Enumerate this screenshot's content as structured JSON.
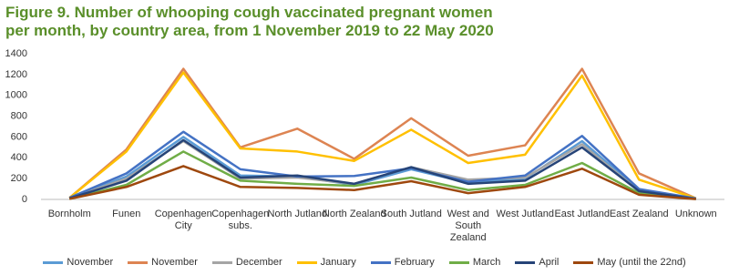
{
  "chart_data": {
    "type": "line",
    "title": "Figure 9. Number of whooping cough vaccinated pregnant women per month, by country area, from 1 November 2019 to 22 May 2020",
    "categories": [
      "Bornholm",
      "Funen",
      "Copenhagen City",
      "Copenhagen subs.",
      "North Jutland",
      "North Zealand",
      "South Jutland",
      "West and South Zealand",
      "West Jutland",
      "East Jutland",
      "East Zealand",
      "Unknown"
    ],
    "series": [
      {
        "name": "November",
        "color": "#5b9bd5",
        "values": [
          10,
          220,
          600,
          230,
          220,
          140,
          290,
          160,
          200,
          560,
          90,
          5
        ]
      },
      {
        "name": "November",
        "color": "#dd8452",
        "values": [
          15,
          480,
          1255,
          500,
          680,
          390,
          780,
          420,
          520,
          1255,
          250,
          10
        ]
      },
      {
        "name": "December",
        "color": "#a5a5a5",
        "values": [
          10,
          200,
          560,
          200,
          210,
          150,
          310,
          190,
          210,
          530,
          80,
          5
        ]
      },
      {
        "name": "January",
        "color": "#ffc000",
        "values": [
          15,
          460,
          1220,
          490,
          460,
          370,
          670,
          350,
          430,
          1190,
          190,
          10
        ]
      },
      {
        "name": "February",
        "color": "#4472c4",
        "values": [
          15,
          250,
          650,
          290,
          220,
          225,
          300,
          170,
          230,
          610,
          100,
          10
        ]
      },
      {
        "name": "March",
        "color": "#70ad47",
        "values": [
          5,
          140,
          460,
          180,
          150,
          130,
          210,
          90,
          140,
          350,
          60,
          5
        ]
      },
      {
        "name": "April",
        "color": "#264478",
        "values": [
          10,
          180,
          570,
          210,
          230,
          150,
          310,
          150,
          180,
          500,
          80,
          5
        ]
      },
      {
        "name": "May (until the 22nd)",
        "color": "#9e480e",
        "values": [
          5,
          120,
          320,
          120,
          110,
          90,
          175,
          60,
          120,
          295,
          45,
          3
        ]
      }
    ],
    "ylim": [
      0,
      1400
    ],
    "yticks": [
      0,
      200,
      400,
      600,
      800,
      1000,
      1200,
      1400
    ],
    "grid": false
  }
}
